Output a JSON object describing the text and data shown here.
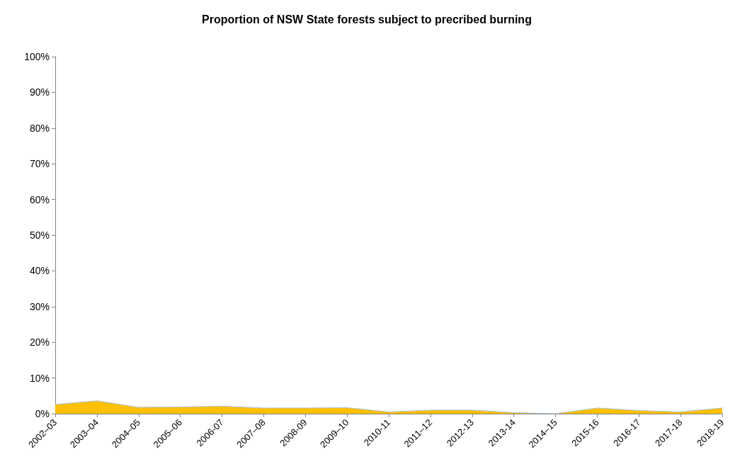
{
  "chart_data": {
    "type": "area",
    "title": "Proportion of NSW State forests subject to precribed burning",
    "categories": [
      "2002–03",
      "2003–04",
      "2004–05",
      "2005–06",
      "2006-07",
      "2007–08",
      "2008-09",
      "2009–10",
      "2010-11",
      "2011–12",
      "2012-13",
      "2013-14",
      "2014–15",
      "2015-16",
      "2016-17",
      "2017-18",
      "2018-19"
    ],
    "series": [
      {
        "color": "#ffc000",
        "values": [
          2.6,
          3.6,
          1.8,
          1.9,
          2.1,
          1.6,
          1.6,
          1.7,
          0.5,
          1.0,
          1.0,
          0.3,
          0.0,
          1.6,
          0.9,
          0.5,
          1.6
        ]
      }
    ],
    "ylim": [
      0,
      100
    ],
    "yticks": [
      {
        "value": 0,
        "label": "0%"
      },
      {
        "value": 10,
        "label": "10%"
      },
      {
        "value": 20,
        "label": "20%"
      },
      {
        "value": 30,
        "label": "30%"
      },
      {
        "value": 40,
        "label": "40%"
      },
      {
        "value": 50,
        "label": "50%"
      },
      {
        "value": 60,
        "label": "60%"
      },
      {
        "value": 70,
        "label": "70%"
      },
      {
        "value": 80,
        "label": "80%"
      },
      {
        "value": 90,
        "label": "90%"
      },
      {
        "value": 100,
        "label": "100%"
      }
    ],
    "grid": false
  }
}
